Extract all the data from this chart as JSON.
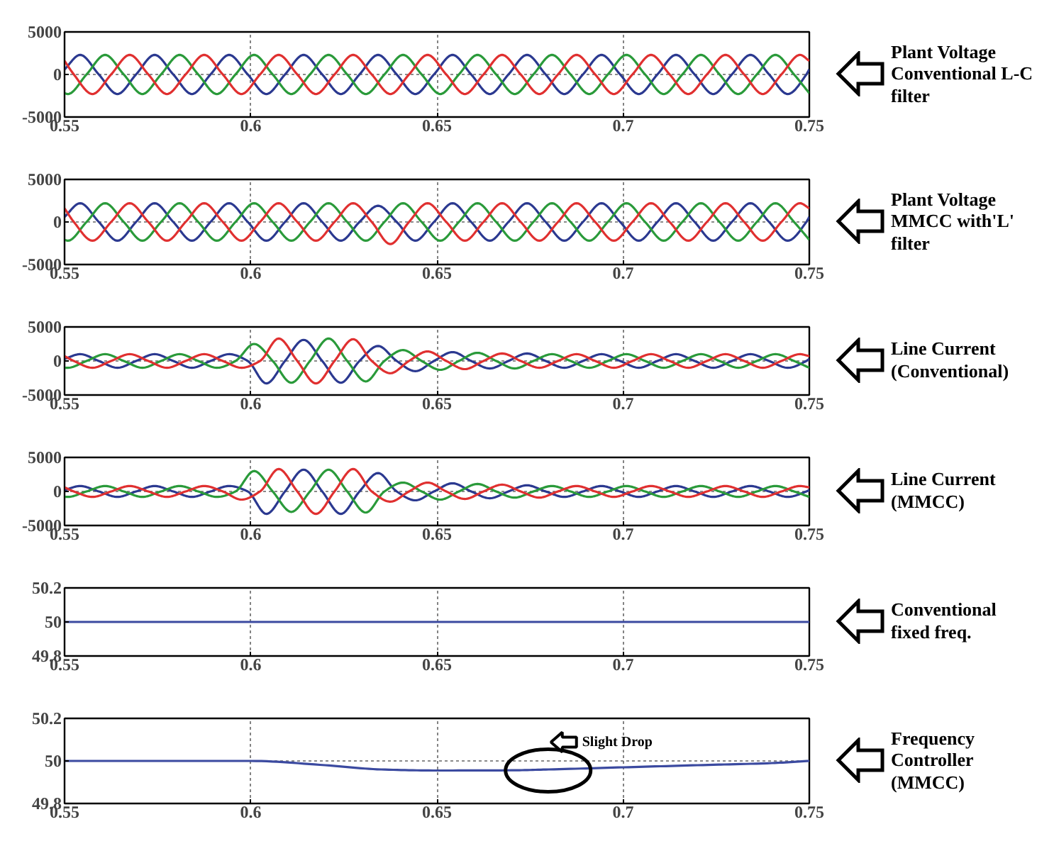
{
  "chart_data": [
    {
      "type": "line",
      "xlim": [
        0.55,
        0.75
      ],
      "xticks": [
        0.55,
        0.6,
        0.65,
        0.7,
        0.75
      ],
      "ylim": [
        -5000,
        5000
      ],
      "yticks": [
        -5000,
        0,
        5000
      ],
      "grid": true,
      "annotations": [
        "Plant Voltage\nConventional L-C\nfilter"
      ],
      "series": [
        {
          "color": "#2b3990",
          "x": [
            0.55,
            0.5542,
            0.5592,
            0.5642,
            0.5692,
            0.5742,
            0.5792,
            0.5842,
            0.5892,
            0.5942,
            0.5992,
            0.6042,
            0.6092,
            0.6142,
            0.6192,
            0.6242,
            0.6292,
            0.6342,
            0.6392,
            0.6442,
            0.6492,
            0.6542,
            0.6592,
            0.6642,
            0.6692,
            0.6742,
            0.6792,
            0.6842,
            0.6892,
            0.6942,
            0.6992,
            0.7042,
            0.7092,
            0.7142,
            0.7192,
            0.7242,
            0.7292,
            0.7342,
            0.7392,
            0.7442,
            0.7492,
            0.75
          ],
          "values": [
            600,
            2300,
            0,
            -2300,
            0,
            2300,
            0,
            -2300,
            0,
            2300,
            0,
            -2300,
            0,
            2300,
            0,
            -2300,
            0,
            2300,
            0,
            -2300,
            0,
            2300,
            0,
            -2300,
            0,
            2300,
            0,
            -2300,
            0,
            2300,
            0,
            -2300,
            0,
            2300,
            0,
            -2300,
            0,
            2300,
            0,
            -2300,
            0,
            600
          ]
        },
        {
          "color": "#2a9a3a",
          "x": [
            0.55,
            0.5509,
            0.5559,
            0.5609,
            0.5659,
            0.5709,
            0.5759,
            0.5809,
            0.5859,
            0.5909,
            0.5959,
            0.6009,
            0.6059,
            0.6109,
            0.6159,
            0.6209,
            0.6259,
            0.6309,
            0.6359,
            0.6409,
            0.6459,
            0.6509,
            0.6559,
            0.6609,
            0.6659,
            0.6709,
            0.6759,
            0.6809,
            0.6859,
            0.6909,
            0.6959,
            0.7009,
            0.7059,
            0.7109,
            0.7159,
            0.7209,
            0.7259,
            0.7309,
            0.7359,
            0.7409,
            0.7459,
            0.75
          ],
          "values": [
            -2200,
            -2300,
            0,
            2300,
            0,
            -2300,
            0,
            2300,
            0,
            -2300,
            0,
            2300,
            0,
            -2300,
            0,
            2300,
            0,
            -2300,
            0,
            2300,
            0,
            -2300,
            0,
            2300,
            0,
            -2300,
            0,
            2300,
            0,
            -2300,
            0,
            2300,
            0,
            -2300,
            0,
            2300,
            0,
            -2300,
            0,
            2300,
            0,
            -2200
          ]
        },
        {
          "color": "#e03030",
          "x": [
            0.55,
            0.5525,
            0.5575,
            0.5625,
            0.5675,
            0.5725,
            0.5775,
            0.5825,
            0.5875,
            0.5925,
            0.5975,
            0.6025,
            0.6075,
            0.6125,
            0.6175,
            0.6225,
            0.6275,
            0.6325,
            0.6375,
            0.6425,
            0.6475,
            0.6525,
            0.6575,
            0.6625,
            0.6675,
            0.6725,
            0.6775,
            0.6825,
            0.6875,
            0.6925,
            0.6975,
            0.7025,
            0.7075,
            0.7125,
            0.7175,
            0.7225,
            0.7275,
            0.7325,
            0.7375,
            0.7425,
            0.7475,
            0.75
          ],
          "values": [
            1600,
            0,
            -2300,
            0,
            2300,
            0,
            -2300,
            0,
            2300,
            0,
            -2300,
            0,
            2300,
            0,
            -2300,
            0,
            2300,
            0,
            -2300,
            0,
            2300,
            0,
            -2300,
            0,
            2300,
            0,
            -2300,
            0,
            2300,
            0,
            -2300,
            0,
            2300,
            0,
            -2300,
            0,
            2300,
            0,
            -2300,
            0,
            2300,
            1600
          ]
        }
      ]
    },
    {
      "type": "line",
      "xlim": [
        0.55,
        0.75
      ],
      "xticks": [
        0.55,
        0.6,
        0.65,
        0.7,
        0.75
      ],
      "ylim": [
        -5000,
        5000
      ],
      "yticks": [
        -5000,
        0,
        5000
      ],
      "grid": true,
      "annotations": [
        "Plant Voltage\nMMCC with'L'\nfilter"
      ],
      "series": [
        {
          "color": "#2b3990",
          "x": [
            0.55,
            0.5542,
            0.5592,
            0.5642,
            0.5692,
            0.5742,
            0.5792,
            0.5842,
            0.5892,
            0.5942,
            0.5992,
            0.6042,
            0.6092,
            0.6142,
            0.6192,
            0.6242,
            0.6292,
            0.6342,
            0.6392,
            0.6442,
            0.6492,
            0.6542,
            0.6592,
            0.6642,
            0.6692,
            0.6742,
            0.6792,
            0.6842,
            0.6892,
            0.6942,
            0.6992,
            0.7042,
            0.7092,
            0.7142,
            0.7192,
            0.7242,
            0.7292,
            0.7342,
            0.7392,
            0.7442,
            0.7492,
            0.75
          ],
          "values": [
            600,
            2200,
            0,
            -2200,
            0,
            2200,
            0,
            -2200,
            0,
            2200,
            0,
            -2200,
            0,
            2200,
            0,
            -2200,
            0,
            1900,
            0,
            -2200,
            0,
            2200,
            0,
            -2200,
            0,
            2200,
            0,
            -2200,
            0,
            2200,
            0,
            -2200,
            0,
            2200,
            0,
            -2200,
            0,
            2200,
            0,
            -2200,
            0,
            600
          ]
        },
        {
          "color": "#2a9a3a",
          "x": [
            0.55,
            0.5509,
            0.5559,
            0.5609,
            0.5659,
            0.5709,
            0.5759,
            0.5809,
            0.5859,
            0.5909,
            0.5959,
            0.6009,
            0.6059,
            0.6109,
            0.6159,
            0.6209,
            0.6259,
            0.6309,
            0.6359,
            0.6409,
            0.6459,
            0.6509,
            0.6559,
            0.6609,
            0.6659,
            0.6709,
            0.6759,
            0.6809,
            0.6859,
            0.6909,
            0.6959,
            0.7009,
            0.7059,
            0.7109,
            0.7159,
            0.7209,
            0.7259,
            0.7309,
            0.7359,
            0.7409,
            0.7459,
            0.75
          ],
          "values": [
            -2100,
            -2200,
            0,
            2200,
            0,
            -2200,
            0,
            2200,
            0,
            -2200,
            0,
            2200,
            0,
            -2200,
            0,
            2200,
            0,
            -2200,
            0,
            2200,
            0,
            -2200,
            0,
            2200,
            0,
            -2200,
            0,
            2200,
            0,
            -2200,
            0,
            2200,
            0,
            -2200,
            0,
            2200,
            0,
            -2200,
            0,
            2200,
            0,
            -2100
          ]
        },
        {
          "color": "#e03030",
          "x": [
            0.55,
            0.5525,
            0.5575,
            0.5625,
            0.5675,
            0.5725,
            0.5775,
            0.5825,
            0.5875,
            0.5925,
            0.5975,
            0.6025,
            0.6075,
            0.6125,
            0.6175,
            0.6225,
            0.6275,
            0.6325,
            0.6375,
            0.6425,
            0.6475,
            0.6525,
            0.6575,
            0.6625,
            0.6675,
            0.6725,
            0.6775,
            0.6825,
            0.6875,
            0.6925,
            0.6975,
            0.7025,
            0.7075,
            0.7125,
            0.7175,
            0.7225,
            0.7275,
            0.7325,
            0.7375,
            0.7425,
            0.7475,
            0.75
          ],
          "values": [
            1600,
            0,
            -2200,
            0,
            2200,
            0,
            -2200,
            0,
            2200,
            0,
            -2200,
            0,
            2200,
            0,
            -2200,
            0,
            2200,
            0,
            -2600,
            0,
            2200,
            0,
            -2200,
            0,
            2200,
            0,
            -2200,
            0,
            2200,
            0,
            -2200,
            0,
            2200,
            0,
            -2200,
            0,
            2200,
            0,
            -2200,
            0,
            2200,
            1600
          ]
        }
      ]
    },
    {
      "type": "line",
      "xlim": [
        0.55,
        0.75
      ],
      "xticks": [
        0.55,
        0.6,
        0.65,
        0.7,
        0.75
      ],
      "ylim": [
        -5000,
        5000
      ],
      "yticks": [
        -5000,
        0,
        5000
      ],
      "grid": true,
      "annotations": [
        "Line Current\n(Conventional)"
      ],
      "series": [
        {
          "color": "#2b3990",
          "x": [
            0.55,
            0.5542,
            0.5592,
            0.5642,
            0.5692,
            0.5742,
            0.5792,
            0.5842,
            0.5892,
            0.5942,
            0.5992,
            0.6042,
            0.6092,
            0.6142,
            0.6192,
            0.6242,
            0.6292,
            0.6342,
            0.6392,
            0.6442,
            0.6492,
            0.6542,
            0.6592,
            0.6642,
            0.6692,
            0.6742,
            0.6792,
            0.6842,
            0.6892,
            0.6942,
            0.6992,
            0.7042,
            0.7092,
            0.7142,
            0.7192,
            0.7242,
            0.7292,
            0.7342,
            0.7392,
            0.7442,
            0.7492,
            0.75
          ],
          "values": [
            300,
            1000,
            0,
            -1000,
            0,
            1000,
            0,
            -1000,
            0,
            1000,
            0,
            -3300,
            0,
            3100,
            0,
            -3200,
            0,
            2200,
            0,
            -1500,
            0,
            1300,
            0,
            -1100,
            0,
            1100,
            0,
            -1000,
            0,
            1000,
            0,
            -1000,
            0,
            1000,
            0,
            -1000,
            0,
            1000,
            0,
            -1000,
            0,
            300
          ]
        },
        {
          "color": "#2a9a3a",
          "x": [
            0.55,
            0.5509,
            0.5559,
            0.5609,
            0.5659,
            0.5709,
            0.5759,
            0.5809,
            0.5859,
            0.5909,
            0.5959,
            0.6009,
            0.6059,
            0.6109,
            0.6159,
            0.6209,
            0.6259,
            0.6309,
            0.6359,
            0.6409,
            0.6459,
            0.6509,
            0.6559,
            0.6609,
            0.6659,
            0.6709,
            0.6759,
            0.6809,
            0.6859,
            0.6909,
            0.6959,
            0.7009,
            0.7059,
            0.7109,
            0.7159,
            0.7209,
            0.7259,
            0.7309,
            0.7359,
            0.7409,
            0.7459,
            0.75
          ],
          "values": [
            -1000,
            -1000,
            0,
            1000,
            0,
            -1000,
            0,
            1000,
            0,
            -1000,
            0,
            2500,
            0,
            -3200,
            0,
            3300,
            0,
            -3000,
            0,
            1600,
            0,
            -1300,
            0,
            1200,
            0,
            -1100,
            0,
            1000,
            0,
            -1000,
            0,
            1000,
            0,
            -1000,
            0,
            1000,
            0,
            -1000,
            0,
            1000,
            0,
            -1000
          ]
        },
        {
          "color": "#e03030",
          "x": [
            0.55,
            0.5525,
            0.5575,
            0.5625,
            0.5675,
            0.5725,
            0.5775,
            0.5825,
            0.5875,
            0.5925,
            0.5975,
            0.6025,
            0.6075,
            0.6125,
            0.6175,
            0.6225,
            0.6275,
            0.6325,
            0.6375,
            0.6425,
            0.6475,
            0.6525,
            0.6575,
            0.6625,
            0.6675,
            0.6725,
            0.6775,
            0.6825,
            0.6875,
            0.6925,
            0.6975,
            0.7025,
            0.7075,
            0.7125,
            0.7175,
            0.7225,
            0.7275,
            0.7325,
            0.7375,
            0.7425,
            0.7475,
            0.75
          ],
          "values": [
            700,
            0,
            -1000,
            0,
            1000,
            0,
            -1000,
            0,
            1000,
            0,
            -1000,
            0,
            3300,
            0,
            -3300,
            0,
            3200,
            0,
            -1800,
            0,
            1400,
            0,
            -1200,
            0,
            1100,
            0,
            -1000,
            0,
            1000,
            0,
            -1000,
            0,
            1000,
            0,
            -1000,
            0,
            1000,
            0,
            -1000,
            0,
            1000,
            700
          ]
        }
      ]
    },
    {
      "type": "line",
      "xlim": [
        0.55,
        0.75
      ],
      "xticks": [
        0.55,
        0.6,
        0.65,
        0.7,
        0.75
      ],
      "ylim": [
        -5000,
        5000
      ],
      "yticks": [
        -5000,
        0,
        5000
      ],
      "grid": true,
      "annotations": [
        "Line Current\n(MMCC)"
      ],
      "series": [
        {
          "color": "#2b3990",
          "x": [
            0.55,
            0.5542,
            0.5592,
            0.5642,
            0.5692,
            0.5742,
            0.5792,
            0.5842,
            0.5892,
            0.5942,
            0.5992,
            0.6042,
            0.6092,
            0.6142,
            0.6192,
            0.6242,
            0.6292,
            0.6342,
            0.6392,
            0.6442,
            0.6492,
            0.6542,
            0.6592,
            0.6642,
            0.6692,
            0.6742,
            0.6792,
            0.6842,
            0.6892,
            0.6942,
            0.6992,
            0.7042,
            0.7092,
            0.7142,
            0.7192,
            0.7242,
            0.7292,
            0.7342,
            0.7392,
            0.7442,
            0.7492,
            0.75
          ],
          "values": [
            200,
            800,
            0,
            -800,
            0,
            800,
            0,
            -800,
            0,
            800,
            0,
            -3300,
            0,
            3200,
            0,
            -3300,
            0,
            2700,
            0,
            -1300,
            0,
            1200,
            0,
            -1000,
            0,
            900,
            0,
            -800,
            0,
            800,
            0,
            -800,
            0,
            800,
            0,
            -800,
            0,
            800,
            0,
            -800,
            0,
            200
          ]
        },
        {
          "color": "#2a9a3a",
          "x": [
            0.55,
            0.5509,
            0.5559,
            0.5609,
            0.5659,
            0.5709,
            0.5759,
            0.5809,
            0.5859,
            0.5909,
            0.5959,
            0.6009,
            0.6059,
            0.6109,
            0.6159,
            0.6209,
            0.6259,
            0.6309,
            0.6359,
            0.6409,
            0.6459,
            0.6509,
            0.6559,
            0.6609,
            0.6659,
            0.6709,
            0.6759,
            0.6809,
            0.6859,
            0.6909,
            0.6959,
            0.7009,
            0.7059,
            0.7109,
            0.7159,
            0.7209,
            0.7259,
            0.7309,
            0.7359,
            0.7409,
            0.7459,
            0.75
          ],
          "values": [
            -800,
            -800,
            0,
            800,
            0,
            -800,
            0,
            800,
            0,
            -800,
            0,
            3000,
            0,
            -3000,
            0,
            3200,
            0,
            -3100,
            0,
            1300,
            0,
            -1200,
            0,
            1100,
            0,
            -900,
            0,
            800,
            0,
            -800,
            0,
            800,
            0,
            -800,
            0,
            800,
            0,
            -800,
            0,
            800,
            0,
            -800
          ]
        },
        {
          "color": "#e03030",
          "x": [
            0.55,
            0.5525,
            0.5575,
            0.5625,
            0.5675,
            0.5725,
            0.5775,
            0.5825,
            0.5875,
            0.5925,
            0.5975,
            0.6025,
            0.6075,
            0.6125,
            0.6175,
            0.6225,
            0.6275,
            0.6325,
            0.6375,
            0.6425,
            0.6475,
            0.6525,
            0.6575,
            0.6625,
            0.6675,
            0.6725,
            0.6775,
            0.6825,
            0.6875,
            0.6925,
            0.6975,
            0.7025,
            0.7075,
            0.7125,
            0.7175,
            0.7225,
            0.7275,
            0.7325,
            0.7375,
            0.7425,
            0.7475,
            0.75
          ],
          "values": [
            600,
            0,
            -800,
            0,
            800,
            0,
            -800,
            0,
            800,
            0,
            -1200,
            0,
            3300,
            0,
            -3300,
            0,
            3300,
            0,
            -1500,
            0,
            1300,
            0,
            -1100,
            0,
            1000,
            0,
            -900,
            0,
            800,
            0,
            -800,
            0,
            800,
            0,
            -800,
            0,
            800,
            0,
            -800,
            0,
            800,
            600
          ]
        }
      ]
    },
    {
      "type": "line",
      "xlim": [
        0.55,
        0.75
      ],
      "xticks": [
        0.55,
        0.6,
        0.65,
        0.7,
        0.75
      ],
      "ylim": [
        49.8,
        50.2
      ],
      "yticks": [
        49.8,
        50,
        50.2
      ],
      "grid": true,
      "annotations": [
        "Conventional\nfixed freq."
      ],
      "series": [
        {
          "color": "#3b4aa0",
          "x": [
            0.55,
            0.75
          ],
          "values": [
            50,
            50
          ]
        }
      ]
    },
    {
      "type": "line",
      "xlim": [
        0.55,
        0.75
      ],
      "xticks": [
        0.55,
        0.6,
        0.65,
        0.7,
        0.75
      ],
      "ylim": [
        49.8,
        50.2
      ],
      "yticks": [
        49.8,
        50,
        50.2
      ],
      "grid": true,
      "annotations": [
        "Frequency\nController\n(MMCC)",
        "Slight Drop"
      ],
      "series": [
        {
          "color": "#3b4aa0",
          "x": [
            0.55,
            0.6,
            0.62,
            0.635,
            0.65,
            0.67,
            0.68,
            0.7,
            0.72,
            0.74,
            0.75
          ],
          "values": [
            50,
            50,
            49.98,
            49.96,
            49.955,
            49.956,
            49.96,
            49.97,
            49.98,
            49.99,
            50
          ]
        }
      ]
    }
  ]
}
